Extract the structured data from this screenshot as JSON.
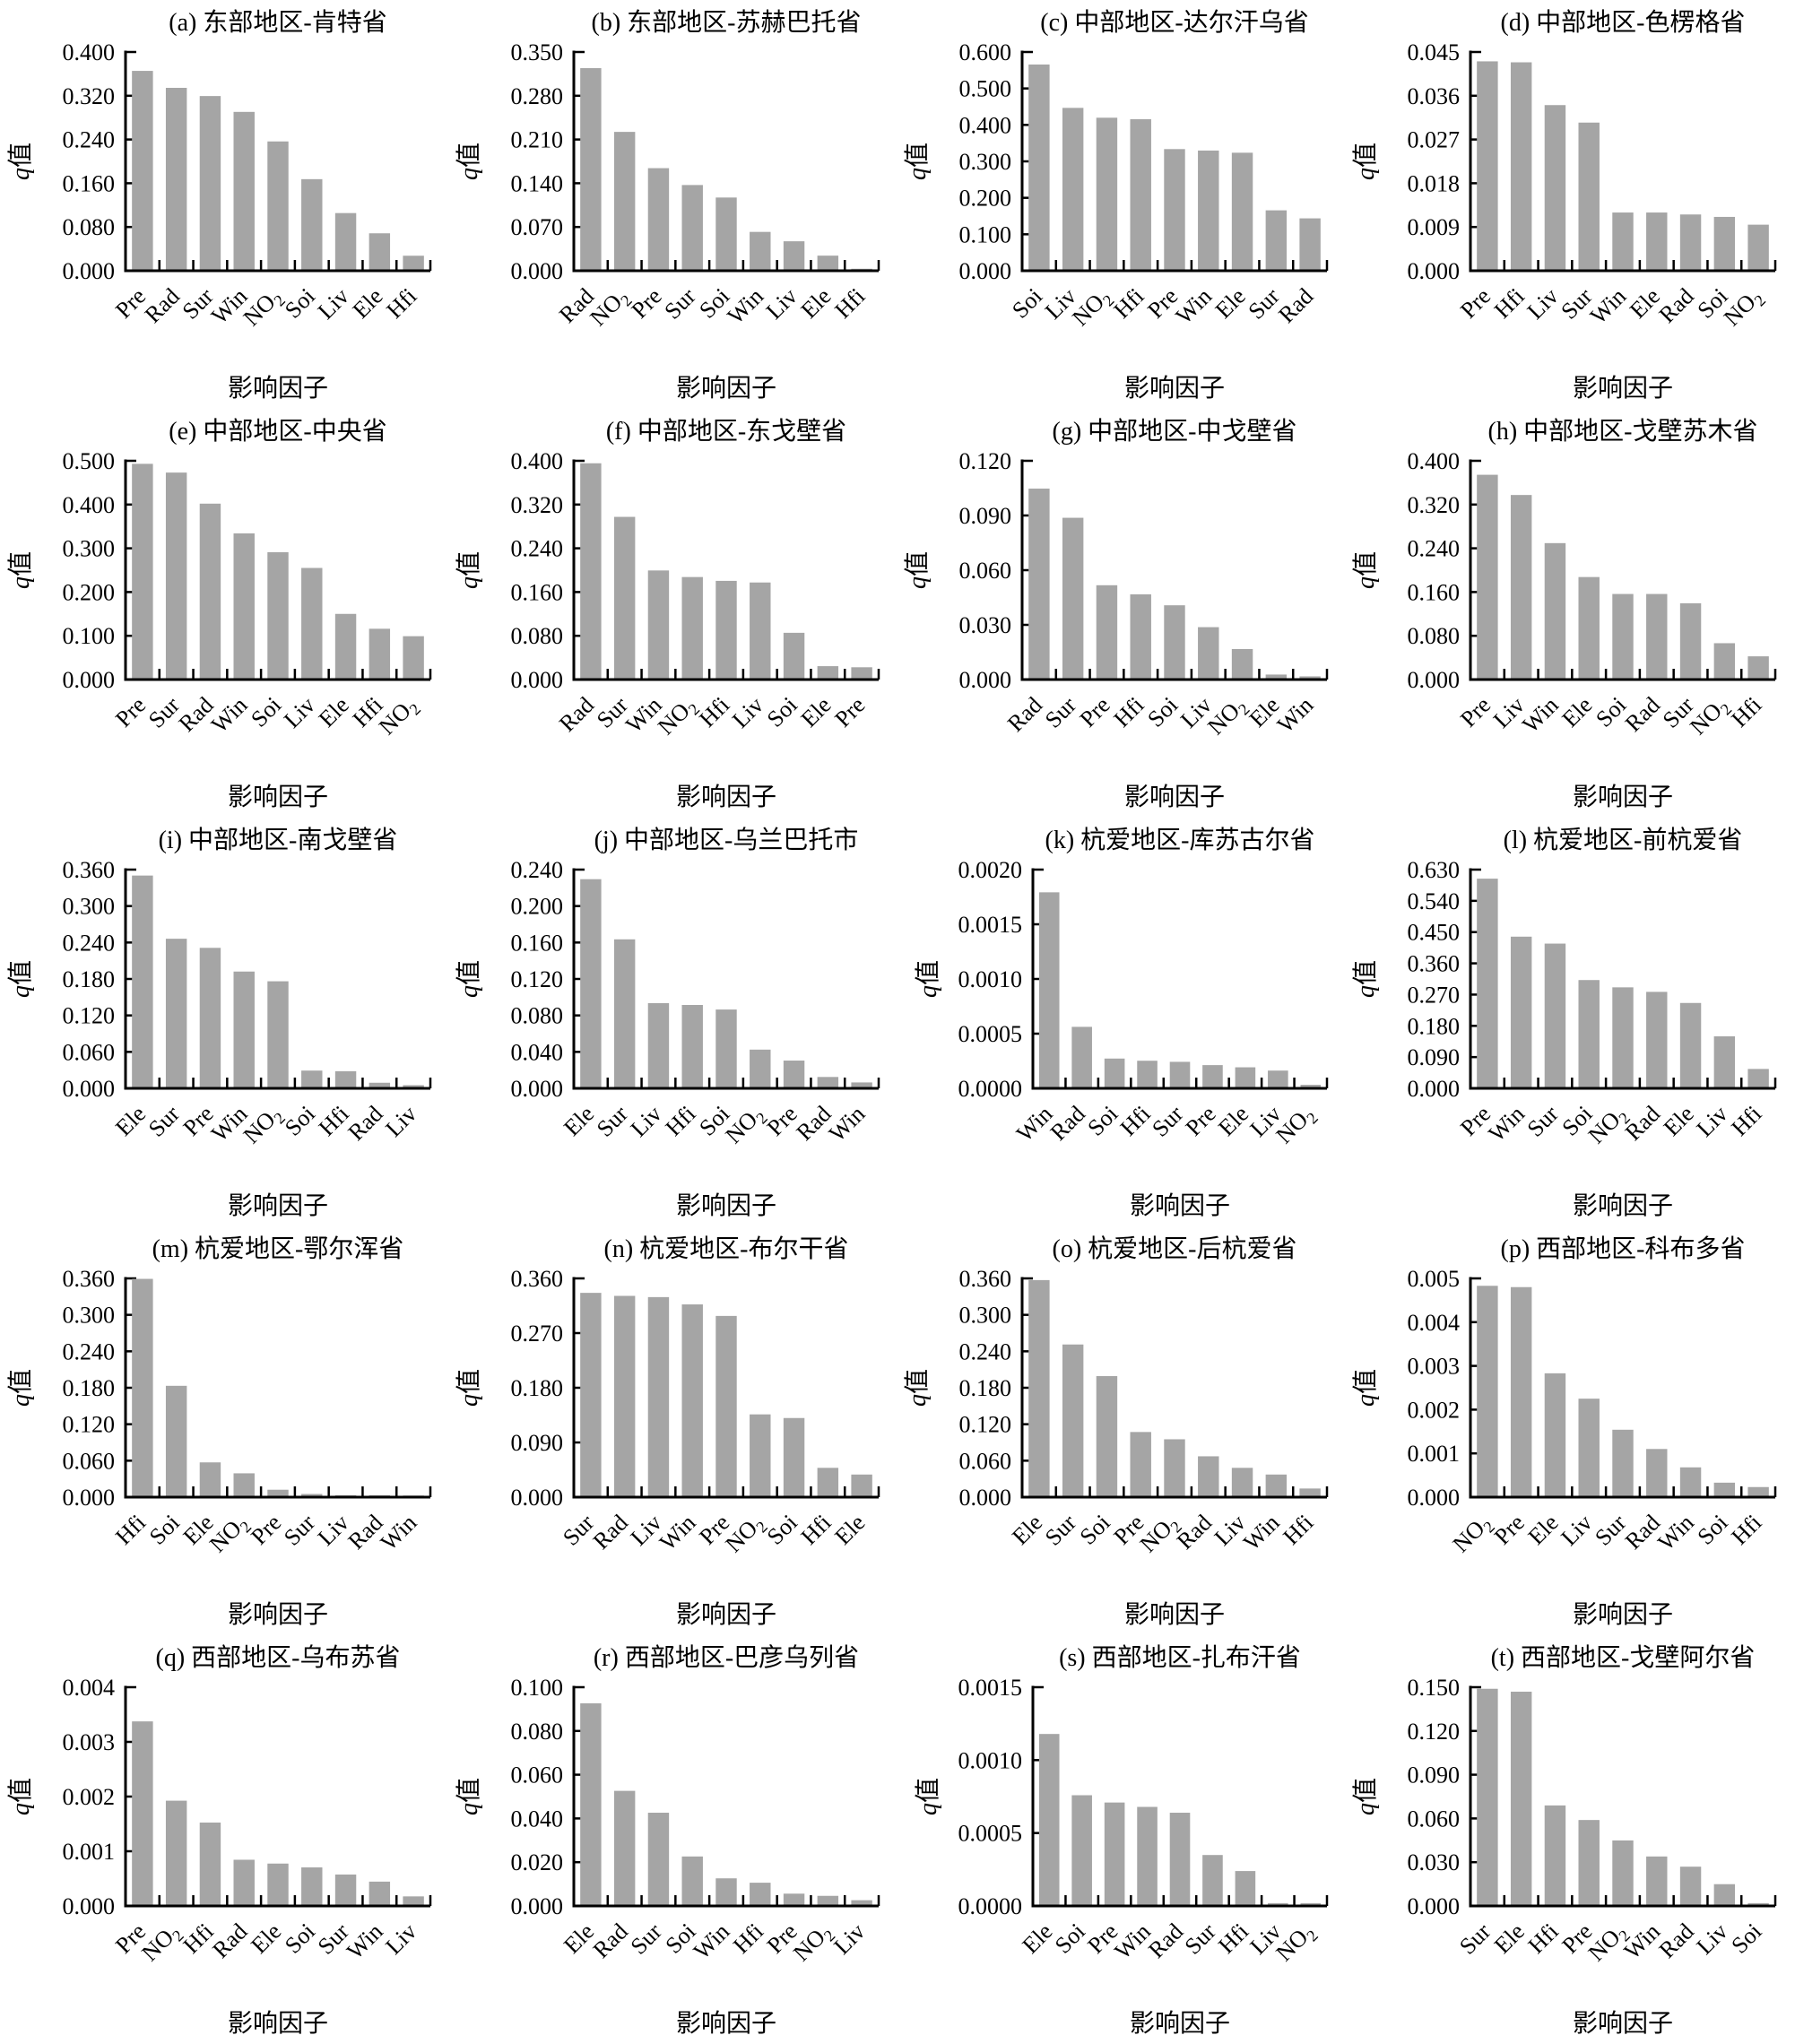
{
  "figure": {
    "xlabel": "影响因子",
    "ylabel_main": "q",
    "ylabel_suffix": "值",
    "bar_color": "#a5a5a5",
    "axis_color": "#000000"
  },
  "chart_data": [
    {
      "panel": "a",
      "type": "bar",
      "title": "(a) 东部地区-肯特省",
      "ymax": 0.4,
      "ystep": 0.08,
      "tick_decimals": 3,
      "categories": [
        "Pre",
        "Rad",
        "Sur",
        "Win",
        "NO2",
        "Soi",
        "Liv",
        "Ele",
        "Hfi"
      ],
      "values": [
        0.363,
        0.332,
        0.317,
        0.288,
        0.234,
        0.165,
        0.103,
        0.066,
        0.025
      ]
    },
    {
      "panel": "b",
      "type": "bar",
      "title": "(b) 东部地区-苏赫巴托省",
      "ymax": 0.35,
      "ystep": 0.07,
      "tick_decimals": 3,
      "categories": [
        "Rad",
        "NO2",
        "Pre",
        "Sur",
        "Soi",
        "Win",
        "Liv",
        "Ele",
        "Hfi"
      ],
      "values": [
        0.322,
        0.22,
        0.162,
        0.135,
        0.115,
        0.06,
        0.045,
        0.022,
        0.001
      ]
    },
    {
      "panel": "c",
      "type": "bar",
      "title": "(c) 中部地区-达尔汗乌省",
      "ymax": 0.6,
      "ystep": 0.1,
      "tick_decimals": 3,
      "categories": [
        "Soi",
        "Liv",
        "NO2",
        "Hfi",
        "Pre",
        "Win",
        "Ele",
        "Sur",
        "Rad"
      ],
      "values": [
        0.562,
        0.443,
        0.416,
        0.412,
        0.33,
        0.326,
        0.32,
        0.162,
        0.14
      ]
    },
    {
      "panel": "d",
      "type": "bar",
      "title": "(d) 中部地区-色楞格省",
      "ymax": 0.045,
      "ystep": 0.009,
      "tick_decimals": 3,
      "categories": [
        "Pre",
        "Hfi",
        "Liv",
        "Sur",
        "Win",
        "Ele",
        "Rad",
        "Soi",
        "NO2"
      ],
      "values": [
        0.0428,
        0.0426,
        0.0338,
        0.0302,
        0.0117,
        0.0117,
        0.0113,
        0.0108,
        0.0092
      ]
    },
    {
      "panel": "e",
      "type": "bar",
      "title": "(e) 中部地区-中央省",
      "ymax": 0.5,
      "ystep": 0.1,
      "tick_decimals": 3,
      "categories": [
        "Pre",
        "Sur",
        "Rad",
        "Win",
        "Soi",
        "Liv",
        "Ele",
        "Hfi",
        "NO2"
      ],
      "values": [
        0.49,
        0.47,
        0.399,
        0.331,
        0.288,
        0.252,
        0.147,
        0.113,
        0.096
      ]
    },
    {
      "panel": "f",
      "type": "bar",
      "title": "(f) 中部地区-东戈壁省",
      "ymax": 0.4,
      "ystep": 0.08,
      "tick_decimals": 3,
      "categories": [
        "Rad",
        "Sur",
        "Win",
        "NO2",
        "Hfi",
        "Liv",
        "Soi",
        "Ele",
        "Pre"
      ],
      "values": [
        0.393,
        0.295,
        0.197,
        0.185,
        0.178,
        0.175,
        0.083,
        0.022,
        0.02
      ]
    },
    {
      "panel": "g",
      "type": "bar",
      "title": "(g) 中部地区-中戈壁省",
      "ymax": 0.12,
      "ystep": 0.03,
      "tick_decimals": 3,
      "categories": [
        "Rad",
        "Sur",
        "Pre",
        "Hfi",
        "Soi",
        "Liv",
        "NO2",
        "Ele",
        "Win"
      ],
      "values": [
        0.104,
        0.088,
        0.051,
        0.046,
        0.04,
        0.028,
        0.016,
        0.002,
        0.001
      ]
    },
    {
      "panel": "h",
      "type": "bar",
      "title": "(h) 中部地区-戈壁苏木省",
      "ymax": 0.4,
      "ystep": 0.08,
      "tick_decimals": 3,
      "categories": [
        "Pre",
        "Liv",
        "Win",
        "Ele",
        "Soi",
        "Rad",
        "Sur",
        "NO2",
        "Hfi"
      ],
      "values": [
        0.372,
        0.335,
        0.247,
        0.185,
        0.154,
        0.154,
        0.137,
        0.064,
        0.04
      ]
    },
    {
      "panel": "i",
      "type": "bar",
      "title": "(i) 中部地区-南戈壁省",
      "ymax": 0.36,
      "ystep": 0.06,
      "tick_decimals": 3,
      "categories": [
        "Ele",
        "Sur",
        "Pre",
        "Win",
        "NO2",
        "Soi",
        "Hfi",
        "Rad",
        "Liv"
      ],
      "values": [
        0.348,
        0.244,
        0.229,
        0.19,
        0.174,
        0.027,
        0.026,
        0.007,
        0.003
      ]
    },
    {
      "panel": "j",
      "type": "bar",
      "title": "(j) 中部地区-乌兰巴托市",
      "ymax": 0.24,
      "ystep": 0.04,
      "tick_decimals": 3,
      "categories": [
        "Ele",
        "Sur",
        "Liv",
        "Hfi",
        "Soi",
        "NO2",
        "Pre",
        "Rad",
        "Win"
      ],
      "values": [
        0.228,
        0.162,
        0.092,
        0.09,
        0.085,
        0.041,
        0.029,
        0.011,
        0.005
      ]
    },
    {
      "panel": "k",
      "type": "bar",
      "title": "(k) 杭爱地区-库苏古尔省",
      "ymax": 0.002,
      "ystep": 0.0005,
      "tick_decimals": 4,
      "categories": [
        "Win",
        "Rad",
        "Soi",
        "Hfi",
        "Sur",
        "Pre",
        "Ele",
        "Liv",
        "NO2"
      ],
      "values": [
        0.00178,
        0.00055,
        0.00026,
        0.00024,
        0.00023,
        0.0002,
        0.00018,
        0.00015,
        2e-05
      ]
    },
    {
      "panel": "l",
      "type": "bar",
      "title": "(l) 杭爱地区-前杭爱省",
      "ymax": 0.63,
      "ystep": 0.09,
      "tick_decimals": 3,
      "categories": [
        "Pre",
        "Win",
        "Sur",
        "Soi",
        "NO2",
        "Rad",
        "Ele",
        "Liv",
        "Hfi"
      ],
      "values": [
        0.6,
        0.433,
        0.413,
        0.308,
        0.287,
        0.274,
        0.242,
        0.146,
        0.052
      ]
    },
    {
      "panel": "m",
      "type": "bar",
      "title": "(m) 杭爱地区-鄂尔浑省",
      "ymax": 0.36,
      "ystep": 0.06,
      "tick_decimals": 3,
      "categories": [
        "Hfi",
        "Soi",
        "Ele",
        "NO2",
        "Pre",
        "Sur",
        "Liv",
        "Rad",
        "Win"
      ],
      "values": [
        0.357,
        0.181,
        0.055,
        0.037,
        0.01,
        0.003,
        0.001,
        0.001,
        0.0005
      ]
    },
    {
      "panel": "n",
      "type": "bar",
      "title": "(n) 杭爱地区-布尔干省",
      "ymax": 0.36,
      "ystep": 0.09,
      "tick_decimals": 3,
      "categories": [
        "Sur",
        "Rad",
        "Liv",
        "Win",
        "Pre",
        "NO2",
        "Soi",
        "Hfi",
        "Ele"
      ],
      "values": [
        0.334,
        0.329,
        0.327,
        0.315,
        0.296,
        0.134,
        0.128,
        0.046,
        0.035
      ]
    },
    {
      "panel": "o",
      "type": "bar",
      "title": "(o) 杭爱地区-后杭爱省",
      "ymax": 0.36,
      "ystep": 0.06,
      "tick_decimals": 3,
      "categories": [
        "Ele",
        "Sur",
        "Soi",
        "Pre",
        "NO2",
        "Rad",
        "Liv",
        "Win",
        "Hfi"
      ],
      "values": [
        0.355,
        0.249,
        0.197,
        0.105,
        0.093,
        0.065,
        0.046,
        0.035,
        0.012
      ]
    },
    {
      "panel": "p",
      "type": "bar",
      "title": "(p) 西部地区-科布多省",
      "ymax": 0.005,
      "ystep": 0.001,
      "tick_decimals": 3,
      "categories": [
        "NO2",
        "Pre",
        "Ele",
        "Liv",
        "Sur",
        "Rad",
        "Win",
        "Soi",
        "Hfi"
      ],
      "values": [
        0.0048,
        0.00477,
        0.0028,
        0.00222,
        0.00151,
        0.00107,
        0.00065,
        0.0003,
        0.0002
      ]
    },
    {
      "panel": "q",
      "type": "bar",
      "title": "(q) 西部地区-乌布苏省",
      "ymax": 0.004,
      "ystep": 0.001,
      "tick_decimals": 3,
      "categories": [
        "Pre",
        "NO2",
        "Hfi",
        "Rad",
        "Ele",
        "Soi",
        "Sur",
        "Win",
        "Liv"
      ],
      "values": [
        0.00335,
        0.0019,
        0.0015,
        0.00082,
        0.00075,
        0.00068,
        0.00055,
        0.00042,
        0.00015
      ]
    },
    {
      "panel": "r",
      "type": "bar",
      "title": "(r) 西部地区-巴彦乌列省",
      "ymax": 0.1,
      "ystep": 0.02,
      "tick_decimals": 3,
      "categories": [
        "Ele",
        "Rad",
        "Sur",
        "Soi",
        "Win",
        "Hfi",
        "Pre",
        "NO2",
        "Liv"
      ],
      "values": [
        0.092,
        0.052,
        0.042,
        0.022,
        0.012,
        0.01,
        0.005,
        0.004,
        0.002
      ]
    },
    {
      "panel": "s",
      "type": "bar",
      "title": "(s) 西部地区-扎布汗省",
      "ymax": 0.0015,
      "ystep": 0.0005,
      "tick_decimals": 4,
      "categories": [
        "Ele",
        "Soi",
        "Pre",
        "Win",
        "Rad",
        "Sur",
        "Hfi",
        "Liv",
        "NO2"
      ],
      "values": [
        0.00117,
        0.00075,
        0.0007,
        0.00067,
        0.00063,
        0.00034,
        0.00023,
        1e-05,
        1e-05
      ]
    },
    {
      "panel": "t",
      "type": "bar",
      "title": "(t) 西部地区-戈壁阿尔省",
      "ymax": 0.15,
      "ystep": 0.03,
      "tick_decimals": 3,
      "categories": [
        "Sur",
        "Ele",
        "Hfi",
        "Pre",
        "NO2",
        "Win",
        "Rad",
        "Liv",
        "Soi"
      ],
      "values": [
        0.148,
        0.146,
        0.068,
        0.058,
        0.044,
        0.033,
        0.026,
        0.014,
        0.001
      ]
    }
  ]
}
